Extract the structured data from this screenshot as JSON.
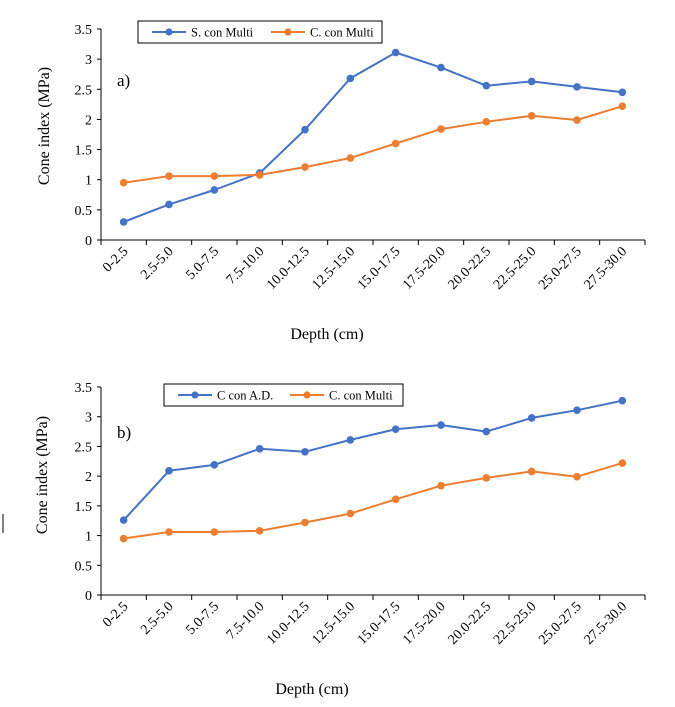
{
  "chart_data": [
    {
      "type": "line",
      "panel_label": "a)",
      "ylabel": "Cone index (MPa)",
      "xlabel": "Depth (cm)",
      "categories": [
        "0-2.5",
        "2.5-5.0",
        "5.0-7.5",
        "7.5-10.0",
        "10.0-12.5",
        "12.5-15.0",
        "15.0-17.5",
        "17.5-20.0",
        "20.0-22.5",
        "22.5-25.0",
        "25.0-27.5",
        "27.5-30.0"
      ],
      "ylim": [
        0,
        3.5
      ],
      "yticks": [
        "0",
        "0.5",
        "1",
        "1.5",
        "2",
        "2.5",
        "3",
        "3.5"
      ],
      "grid": false,
      "legend_position": "top-left",
      "series": [
        {
          "name": "S. con Multi",
          "color": "#4472C4",
          "values": [
            0.3,
            0.59,
            0.83,
            1.11,
            1.83,
            2.68,
            3.11,
            2.86,
            2.56,
            2.63,
            2.54,
            2.45
          ]
        },
        {
          "name": "C. con Multi",
          "color": "#ED7D31",
          "values": [
            0.95,
            1.06,
            1.06,
            1.08,
            1.21,
            1.36,
            1.6,
            1.84,
            1.96,
            2.06,
            1.99,
            2.22
          ]
        }
      ]
    },
    {
      "type": "line",
      "panel_label": "b)",
      "ylabel": "Cone index (MPa)",
      "xlabel": "Depth (cm)",
      "categories": [
        "0-2.5",
        "2.5-5.0",
        "5.0-7.5",
        "7.5-10.0",
        "10.0-12.5",
        "12.5-15.0",
        "15.0-17.5",
        "17.5-20.0",
        "20.0-22.5",
        "22.5-25.0",
        "25.0-27.5",
        "27.5-30.0"
      ],
      "ylim": [
        0,
        3.5
      ],
      "yticks": [
        "0",
        "0.5",
        "1",
        "1.5",
        "2",
        "2.5",
        "3",
        "3.5"
      ],
      "grid": false,
      "legend_position": "top-left",
      "series": [
        {
          "name": "C con A.D.",
          "color": "#4472C4",
          "values": [
            1.26,
            2.09,
            2.19,
            2.46,
            2.41,
            2.61,
            2.79,
            2.86,
            2.75,
            2.98,
            3.11,
            3.27
          ]
        },
        {
          "name": "C. con Multi",
          "color": "#ED7D31",
          "values": [
            0.95,
            1.06,
            1.06,
            1.08,
            1.22,
            1.37,
            1.61,
            1.84,
            1.97,
            2.08,
            1.99,
            2.22
          ]
        }
      ]
    }
  ]
}
